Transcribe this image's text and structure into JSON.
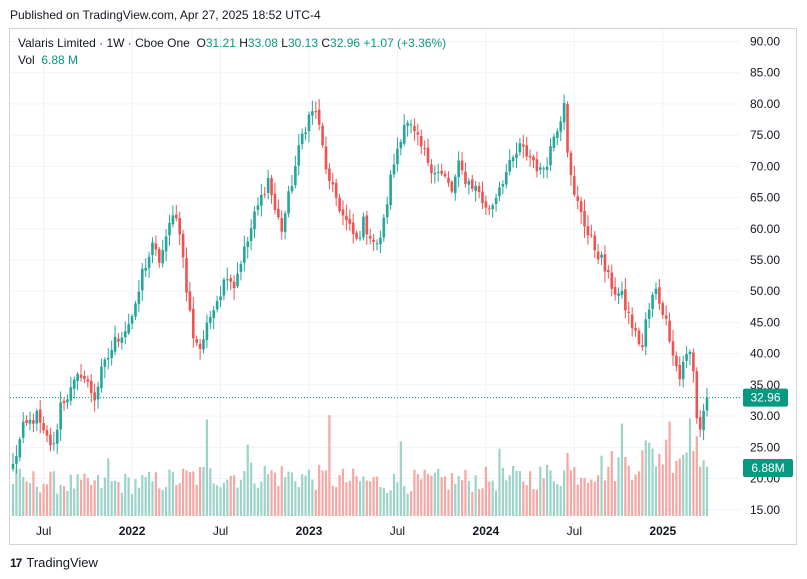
{
  "header": {
    "published": "Published on TradingView.com, Apr 27, 2025 18:52 UTC-4"
  },
  "legend": {
    "title": "Valaris Limited · 1W · Cboe One",
    "o_label": "O",
    "o_value": "31.21",
    "h_label": "H",
    "h_value": "33.08",
    "l_label": "L",
    "l_value": "30.13",
    "c_label": "C",
    "c_value": "32.96",
    "change": "+1.07 (+3.36%)",
    "vol_label": "Vol",
    "vol_value": "6.88 M"
  },
  "footer": {
    "brand": "TradingView",
    "logo": "17"
  },
  "colors": {
    "up": "#26a69a",
    "down": "#ef5350",
    "vol_up": "#9cd3c9",
    "vol_down": "#f5a7a3",
    "grid": "#f0f3fa",
    "axis_text": "#131722",
    "badge": "#089981"
  },
  "chart_data": {
    "type": "candlestick",
    "title": "Valaris Limited · 1W · Cboe One",
    "interval": "1W",
    "y_axis": {
      "ticks": [
        "90.00",
        "85.00",
        "80.00",
        "75.00",
        "70.00",
        "65.00",
        "60.00",
        "55.00",
        "50.00",
        "45.00",
        "40.00",
        "35.00",
        "30.00",
        "25.00",
        "20.00",
        "15.00"
      ],
      "range": [
        14,
        92
      ]
    },
    "x_axis": {
      "labels": [
        "Jul",
        "2022",
        "Jul",
        "2023",
        "Jul",
        "2024",
        "Jul",
        "2025"
      ],
      "bold": [
        false,
        true,
        false,
        true,
        false,
        true,
        false,
        true
      ]
    },
    "last_price": "32.96",
    "last_volume": "6.88M",
    "price_path": [
      [
        0,
        22
      ],
      [
        3,
        28
      ],
      [
        7,
        30
      ],
      [
        9,
        27
      ],
      [
        12,
        25
      ],
      [
        14,
        32
      ],
      [
        17,
        34
      ],
      [
        20,
        37
      ],
      [
        22,
        35
      ],
      [
        24,
        33
      ],
      [
        26,
        37
      ],
      [
        30,
        42
      ],
      [
        33,
        44
      ],
      [
        36,
        47
      ],
      [
        38,
        53
      ],
      [
        41,
        57
      ],
      [
        43,
        55
      ],
      [
        45,
        58
      ],
      [
        47,
        63
      ],
      [
        49,
        60
      ],
      [
        51,
        50
      ],
      [
        53,
        43
      ],
      [
        55,
        41
      ],
      [
        57,
        44
      ],
      [
        59,
        48
      ],
      [
        61,
        50
      ],
      [
        63,
        53
      ],
      [
        65,
        51
      ],
      [
        67,
        55
      ],
      [
        69,
        58
      ],
      [
        71,
        62
      ],
      [
        73,
        65
      ],
      [
        75,
        68
      ],
      [
        77,
        63
      ],
      [
        79,
        60
      ],
      [
        81,
        65
      ],
      [
        83,
        70
      ],
      [
        85,
        75
      ],
      [
        87,
        78
      ],
      [
        89,
        79
      ],
      [
        91,
        73
      ],
      [
        93,
        67
      ],
      [
        95,
        65
      ],
      [
        97,
        62
      ],
      [
        99,
        60
      ],
      [
        101,
        58
      ],
      [
        103,
        61
      ],
      [
        105,
        59
      ],
      [
        107,
        57
      ],
      [
        109,
        61
      ],
      [
        111,
        68
      ],
      [
        113,
        73
      ],
      [
        115,
        77
      ],
      [
        117,
        76
      ],
      [
        119,
        74
      ],
      [
        121,
        72
      ],
      [
        123,
        70
      ],
      [
        125,
        69
      ],
      [
        127,
        68
      ],
      [
        129,
        66
      ],
      [
        131,
        70
      ],
      [
        133,
        68
      ],
      [
        135,
        67
      ],
      [
        137,
        66
      ],
      [
        139,
        63
      ],
      [
        141,
        64
      ],
      [
        143,
        67
      ],
      [
        145,
        69
      ],
      [
        147,
        71
      ],
      [
        149,
        73
      ],
      [
        151,
        72
      ],
      [
        153,
        71
      ],
      [
        155,
        69
      ],
      [
        157,
        71
      ],
      [
        159,
        75
      ],
      [
        161,
        78
      ],
      [
        162,
        81
      ],
      [
        163,
        73
      ],
      [
        164,
        68
      ],
      [
        165,
        65
      ],
      [
        167,
        63
      ],
      [
        169,
        59
      ],
      [
        171,
        57
      ],
      [
        173,
        55
      ],
      [
        175,
        52
      ],
      [
        177,
        50
      ],
      [
        179,
        49
      ],
      [
        181,
        46
      ],
      [
        183,
        43
      ],
      [
        185,
        41
      ],
      [
        186,
        45
      ],
      [
        188,
        49
      ],
      [
        189,
        50
      ],
      [
        191,
        47
      ],
      [
        193,
        43
      ],
      [
        195,
        38
      ],
      [
        196,
        36
      ],
      [
        197,
        39
      ],
      [
        199,
        40
      ],
      [
        200,
        37
      ],
      [
        201,
        30
      ],
      [
        202,
        28
      ],
      [
        203,
        31
      ],
      [
        204,
        33
      ]
    ],
    "volume_path": [
      [
        0,
        3.5
      ],
      [
        20,
        3.0
      ],
      [
        40,
        3.2
      ],
      [
        55,
        3.8
      ],
      [
        75,
        4.0
      ],
      [
        95,
        3.5
      ],
      [
        110,
        3.2
      ],
      [
        130,
        3.4
      ],
      [
        150,
        3.6
      ],
      [
        165,
        4.2
      ],
      [
        180,
        5.0
      ],
      [
        190,
        6.0
      ],
      [
        200,
        6.5
      ],
      [
        204,
        6.9
      ]
    ],
    "volume_spikes": [
      [
        4,
        3.3
      ],
      [
        28,
        5.5
      ],
      [
        57,
        9.2
      ],
      [
        69,
        6.8
      ],
      [
        93,
        9.6
      ],
      [
        114,
        7.1
      ],
      [
        143,
        6.4
      ],
      [
        163,
        6.0
      ],
      [
        179,
        8.8
      ],
      [
        186,
        7.2
      ],
      [
        193,
        9.0
      ],
      [
        199,
        9.3
      ],
      [
        201,
        7.6
      ],
      [
        203,
        5.3
      ]
    ],
    "weeks": 205
  }
}
